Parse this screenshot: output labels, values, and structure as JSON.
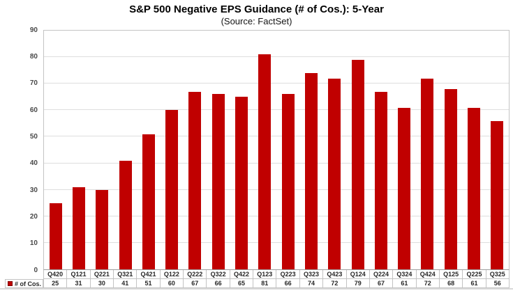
{
  "title": "S&P 500 Negative EPS Guidance (# of Cos.): 5-Year",
  "subtitle": "(Source: FactSet)",
  "legend": {
    "series_label": "# of Cos."
  },
  "colors": {
    "bar": "#c00000",
    "gridline": "#dedede",
    "plot_border": "#c3c3c3",
    "axis_text": "#4a4a4a",
    "table_text": "#262626"
  },
  "y_axis": {
    "tick_labels": [
      "0",
      "10",
      "20",
      "30",
      "40",
      "50",
      "60",
      "70",
      "80",
      "90"
    ]
  },
  "chart_data": {
    "type": "bar",
    "title": "S&P 500 Negative EPS Guidance (# of Cos.): 5-Year",
    "subtitle": "(Source: FactSet)",
    "series_name": "# of Cos.",
    "categories": [
      "Q420",
      "Q121",
      "Q221",
      "Q321",
      "Q421",
      "Q122",
      "Q222",
      "Q322",
      "Q422",
      "Q123",
      "Q223",
      "Q323",
      "Q423",
      "Q124",
      "Q224",
      "Q324",
      "Q424",
      "Q125",
      "Q225",
      "Q325"
    ],
    "values": [
      25,
      31,
      30,
      41,
      51,
      60,
      67,
      66,
      65,
      81,
      66,
      74,
      72,
      79,
      67,
      61,
      72,
      68,
      61,
      56
    ],
    "xlabel": "",
    "ylabel": "",
    "ylim": [
      0,
      90
    ],
    "ytick_interval": 10,
    "grid": true,
    "legend_position": "data-table-left",
    "data_table": true
  }
}
